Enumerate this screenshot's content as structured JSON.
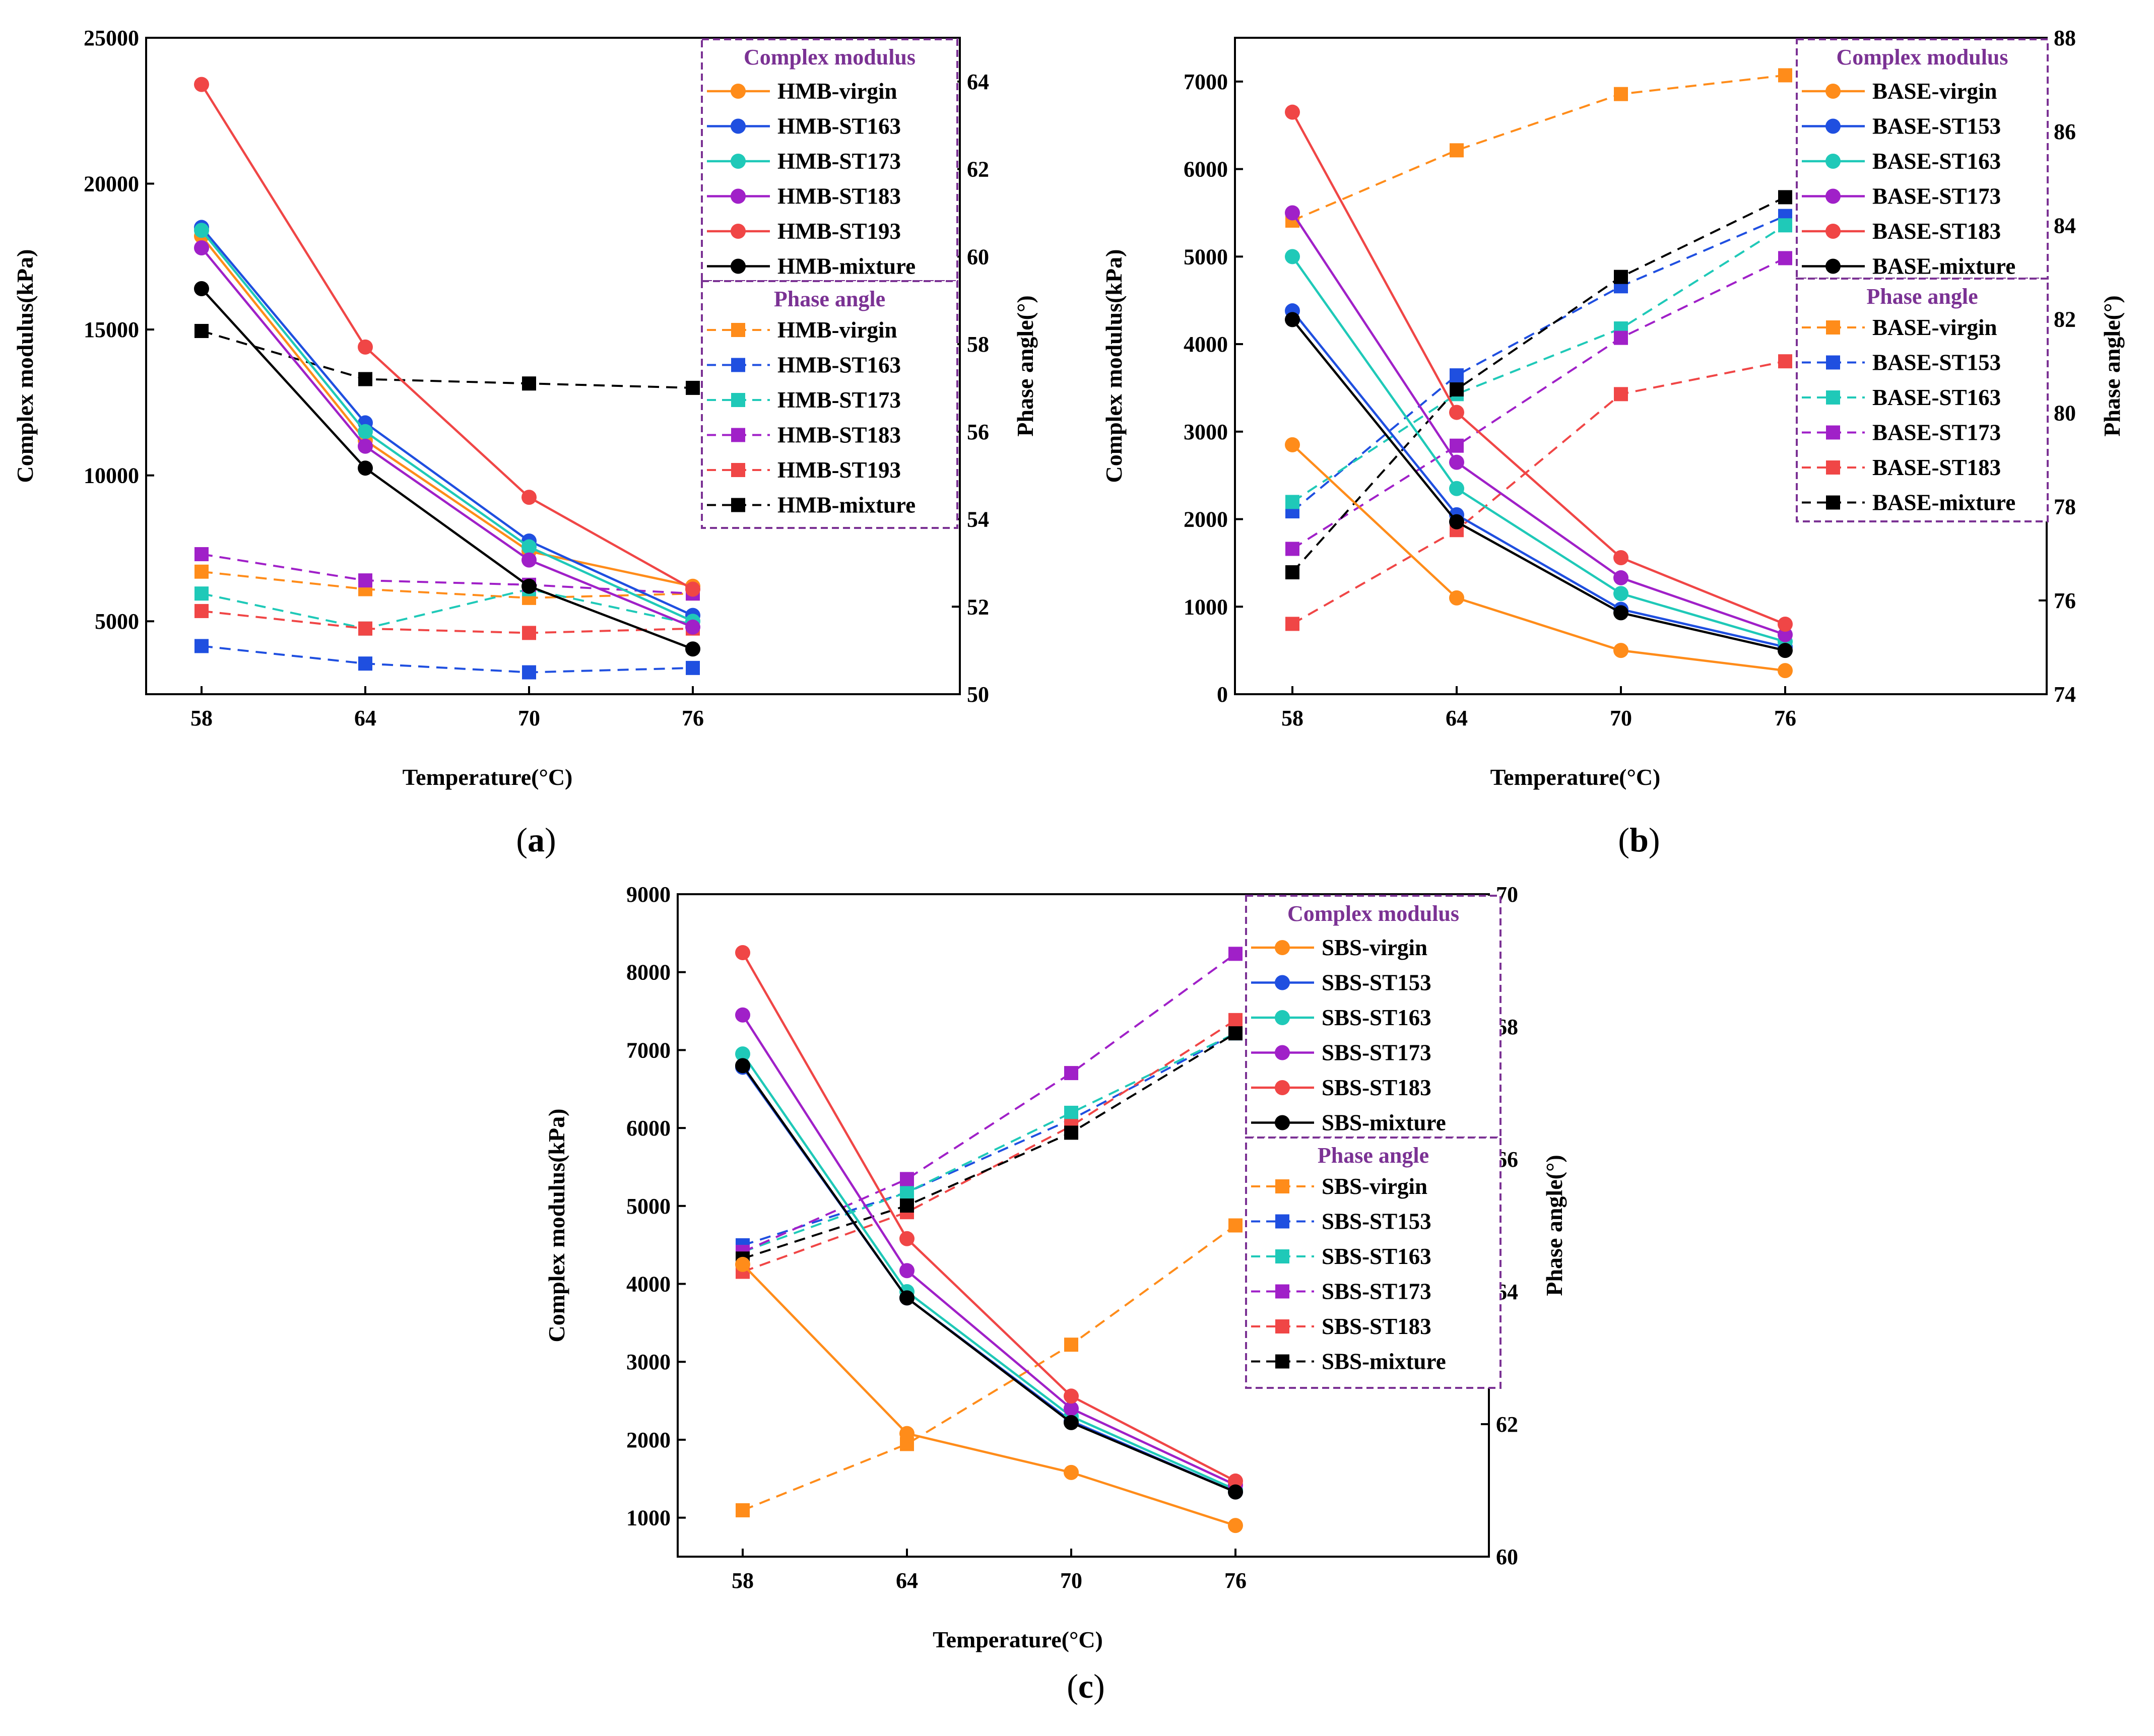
{
  "chart_data": [
    {
      "id": "a",
      "type": "line",
      "caption": "a",
      "xlabel": "Temperature(°C)",
      "ylabel_left": "Complex modulus(kPa)",
      "ylabel_right": "Phase angle(°)",
      "categories": [
        "58",
        "64",
        "70",
        "76"
      ],
      "ylim_left": [
        2500,
        25000
      ],
      "yticks_left": [
        "5000",
        "10000",
        "15000",
        "20000",
        "25000"
      ],
      "ylim_right": [
        50,
        65
      ],
      "yticks_right": [
        "50",
        "52",
        "54",
        "56",
        "58",
        "60",
        "62",
        "64"
      ],
      "legend_modulus_title": "Complex modulus",
      "legend_phase_title": "Phase angle",
      "modulus_series": [
        {
          "name": "HMB-virgin",
          "color": "#ff8c1a",
          "values": [
            18200,
            11200,
            7400,
            6200
          ]
        },
        {
          "name": "HMB-ST163",
          "color": "#1f4fe0",
          "values": [
            18500,
            11800,
            7750,
            5200
          ]
        },
        {
          "name": "HMB-ST173",
          "color": "#1fc9b8",
          "values": [
            18400,
            11500,
            7550,
            5000
          ]
        },
        {
          "name": "HMB-ST183",
          "color": "#a020c8",
          "values": [
            17800,
            11000,
            7100,
            4800
          ]
        },
        {
          "name": "HMB-ST193",
          "color": "#f04646",
          "values": [
            23400,
            14400,
            9250,
            6100
          ]
        },
        {
          "name": "HMB-mixture",
          "color": "#000000",
          "values": [
            16400,
            10250,
            6200,
            4050
          ]
        }
      ],
      "phase_series": [
        {
          "name": "HMB-virgin",
          "color": "#ff8c1a",
          "values": [
            52.8,
            52.4,
            52.2,
            52.3
          ]
        },
        {
          "name": "HMB-ST163",
          "color": "#1f4fe0",
          "values": [
            51.1,
            50.7,
            50.5,
            50.6
          ]
        },
        {
          "name": "HMB-ST173",
          "color": "#1fc9b8",
          "values": [
            52.3,
            51.5,
            52.4,
            51.6
          ]
        },
        {
          "name": "HMB-ST183",
          "color": "#a020c8",
          "values": [
            53.2,
            52.6,
            52.5,
            52.3
          ]
        },
        {
          "name": "HMB-ST193",
          "color": "#f04646",
          "values": [
            51.9,
            51.5,
            51.4,
            51.5
          ]
        },
        {
          "name": "HMB-mixture",
          "color": "#000000",
          "values": [
            58.3,
            57.2,
            57.1,
            57.0
          ]
        }
      ]
    },
    {
      "id": "b",
      "type": "line",
      "caption": "b",
      "xlabel": "Temperature(°C)",
      "ylabel_left": "Complex modulus(kPa)",
      "ylabel_right": "Phase angle(°)",
      "categories": [
        "58",
        "64",
        "70",
        "76"
      ],
      "ylim_left": [
        0,
        7500
      ],
      "yticks_left": [
        "0",
        "1000",
        "2000",
        "3000",
        "4000",
        "5000",
        "6000",
        "7000"
      ],
      "ylim_right": [
        74,
        88
      ],
      "yticks_right": [
        "74",
        "76",
        "78",
        "80",
        "82",
        "84",
        "86",
        "88"
      ],
      "legend_modulus_title": "Complex modulus",
      "legend_phase_title": "Phase angle",
      "modulus_series": [
        {
          "name": "BASE-virgin",
          "color": "#ff8c1a",
          "values": [
            2850,
            1100,
            500,
            270
          ]
        },
        {
          "name": "BASE-ST153",
          "color": "#1f4fe0",
          "values": [
            4380,
            2050,
            970,
            540
          ]
        },
        {
          "name": "BASE-ST163",
          "color": "#1fc9b8",
          "values": [
            5000,
            2350,
            1150,
            600
          ]
        },
        {
          "name": "BASE-ST173",
          "color": "#a020c8",
          "values": [
            5500,
            2650,
            1330,
            680
          ]
        },
        {
          "name": "BASE-ST183",
          "color": "#f04646",
          "values": [
            6650,
            3220,
            1560,
            800
          ]
        },
        {
          "name": "BASE-mixture",
          "color": "#000000",
          "values": [
            4280,
            1970,
            930,
            500
          ]
        }
      ],
      "phase_series": [
        {
          "name": "BASE-virgin",
          "color": "#ff8c1a",
          "values": [
            84.1,
            85.6,
            86.8,
            87.2
          ]
        },
        {
          "name": "BASE-ST153",
          "color": "#1f4fe0",
          "values": [
            77.9,
            80.8,
            82.7,
            84.2
          ]
        },
        {
          "name": "BASE-ST163",
          "color": "#1fc9b8",
          "values": [
            78.1,
            80.4,
            81.8,
            84.0
          ]
        },
        {
          "name": "BASE-ST173",
          "color": "#a020c8",
          "values": [
            77.1,
            79.3,
            81.6,
            83.3
          ]
        },
        {
          "name": "BASE-ST183",
          "color": "#f04646",
          "values": [
            75.5,
            77.5,
            80.4,
            81.1
          ]
        },
        {
          "name": "BASE-mixture",
          "color": "#000000",
          "values": [
            76.6,
            80.5,
            82.9,
            84.6
          ]
        }
      ]
    },
    {
      "id": "c",
      "type": "line",
      "caption": "c",
      "xlabel": "Temperature(°C)",
      "ylabel_left": "Complex modulus(kPa)",
      "ylabel_right": "Phase angle(°)",
      "categories": [
        "58",
        "64",
        "70",
        "76"
      ],
      "ylim_left": [
        500,
        9000
      ],
      "yticks_left": [
        "1000",
        "2000",
        "3000",
        "4000",
        "5000",
        "6000",
        "7000",
        "8000",
        "9000"
      ],
      "ylim_right": [
        60,
        70
      ],
      "yticks_right": [
        "60",
        "62",
        "64",
        "66",
        "68",
        "70"
      ],
      "legend_modulus_title": "Complex modulus",
      "legend_phase_title": "Phase angle",
      "modulus_series": [
        {
          "name": "SBS-virgin",
          "color": "#ff8c1a",
          "values": [
            4250,
            2080,
            1580,
            900
          ]
        },
        {
          "name": "SBS-ST153",
          "color": "#1f4fe0",
          "values": [
            6780,
            3820,
            2240,
            1330
          ]
        },
        {
          "name": "SBS-ST163",
          "color": "#1fc9b8",
          "values": [
            6950,
            3900,
            2300,
            1360
          ]
        },
        {
          "name": "SBS-ST173",
          "color": "#a020c8",
          "values": [
            7450,
            4170,
            2400,
            1420
          ]
        },
        {
          "name": "SBS-ST183",
          "color": "#f04646",
          "values": [
            8250,
            4580,
            2560,
            1470
          ]
        },
        {
          "name": "SBS-mixture",
          "color": "#000000",
          "values": [
            6800,
            3820,
            2220,
            1330
          ]
        }
      ],
      "phase_series": [
        {
          "name": "SBS-virgin",
          "color": "#ff8c1a",
          "values": [
            60.7,
            61.7,
            63.2,
            65.0
          ]
        },
        {
          "name": "SBS-ST153",
          "color": "#1f4fe0",
          "values": [
            64.7,
            65.5,
            66.6,
            67.9
          ]
        },
        {
          "name": "SBS-ST163",
          "color": "#1fc9b8",
          "values": [
            64.6,
            65.5,
            66.7,
            67.9
          ]
        },
        {
          "name": "SBS-ST173",
          "color": "#a020c8",
          "values": [
            64.6,
            65.7,
            67.3,
            69.1
          ]
        },
        {
          "name": "SBS-ST183",
          "color": "#f04646",
          "values": [
            64.3,
            65.2,
            66.5,
            68.1
          ]
        },
        {
          "name": "SBS-mixture",
          "color": "#000000",
          "values": [
            64.5,
            65.3,
            66.4,
            67.9
          ]
        }
      ]
    }
  ]
}
